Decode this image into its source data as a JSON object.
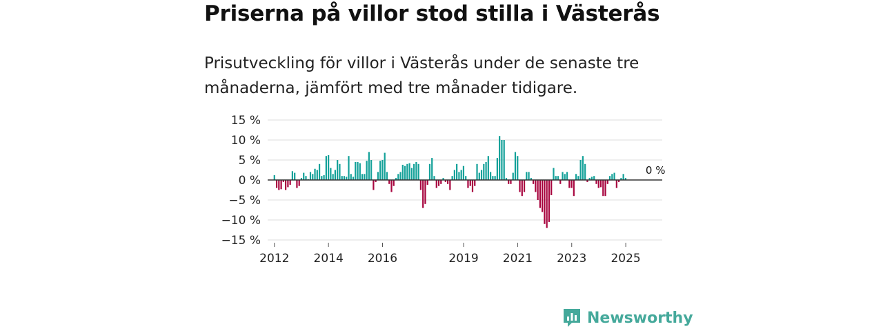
{
  "page": {
    "title": "Priserna på villor stod stilla i Västerås",
    "subtitle": "Prisutveckling för villor i Västerås under de senaste tre månaderna, jämfört med tre månader tidigare.",
    "brand": "Newsworthy"
  },
  "colors": {
    "positive": "#14a199",
    "negative": "#a8063f",
    "grid": "#dcdcdc",
    "zero_line": "#333333",
    "axis_text": "#222222",
    "brand": "#45a99b"
  },
  "chart_data": {
    "type": "bar",
    "title": "Priserna på villor stod stilla i Västerås",
    "xlabel": "",
    "ylabel": "",
    "ylim": [
      -15,
      15
    ],
    "y_ticks": [
      15,
      10,
      5,
      0,
      -5,
      -10,
      -15
    ],
    "y_tick_labels": [
      "15 %",
      "10 %",
      "5 %",
      "0 %",
      "−5 %",
      "−10 %",
      "−15 %"
    ],
    "x_range": [
      2011.75,
      2026.35
    ],
    "x_ticks": [
      2012,
      2014,
      2016,
      2019,
      2021,
      2023,
      2025
    ],
    "x_tick_labels": [
      "2012",
      "2014",
      "2016",
      "2019",
      "2021",
      "2023",
      "2025"
    ],
    "bar_step_years": 0.0833,
    "start_x": 2012.0,
    "values": [
      1.2,
      -2.0,
      -2.5,
      -2.3,
      -0.5,
      -2.5,
      -1.8,
      -1.2,
      2.2,
      1.8,
      -2.0,
      -1.5,
      0.5,
      1.8,
      1.0,
      0.2,
      2.0,
      1.5,
      2.8,
      2.5,
      4.0,
      1.0,
      1.2,
      6.0,
      6.2,
      3.0,
      1.5,
      2.5,
      5.0,
      4.0,
      1.0,
      1.0,
      0.8,
      6.0,
      1.5,
      0.8,
      4.5,
      4.5,
      4.2,
      1.5,
      1.5,
      4.8,
      7.0,
      5.0,
      -2.5,
      -0.5,
      2.0,
      4.8,
      5.0,
      6.8,
      2.0,
      -1.0,
      -3.0,
      -1.5,
      0.5,
      1.5,
      2.0,
      3.8,
      3.5,
      4.0,
      4.2,
      3.0,
      4.0,
      4.5,
      4.0,
      -2.5,
      -7.0,
      -6.0,
      -1.2,
      4.0,
      5.5,
      1.0,
      -2.0,
      -1.5,
      -1.0,
      0.5,
      -0.5,
      -1.0,
      -2.5,
      1.0,
      2.5,
      4.0,
      2.0,
      2.5,
      3.5,
      1.0,
      -2.0,
      -1.5,
      -3.0,
      -1.5,
      4.0,
      1.8,
      2.5,
      4.0,
      4.5,
      6.0,
      2.0,
      1.0,
      1.0,
      5.5,
      11.0,
      10.0,
      10.0,
      0.5,
      -1.0,
      -1.0,
      1.8,
      7.0,
      6.0,
      -3.0,
      -4.0,
      -3.0,
      2.0,
      2.0,
      0.5,
      -1.0,
      -3.0,
      -5.0,
      -7.0,
      -8.0,
      -11.0,
      -12.0,
      -10.5,
      -3.8,
      3.0,
      1.0,
      1.0,
      -1.0,
      2.0,
      1.5,
      2.0,
      -2.0,
      -2.0,
      -4.0,
      1.5,
      1.0,
      5.0,
      6.0,
      4.0,
      -0.5,
      0.5,
      0.8,
      1.0,
      -1.0,
      -2.0,
      -1.8,
      -4.0,
      -4.0,
      -1.0,
      1.0,
      1.5,
      1.8,
      -2.0,
      -0.5,
      0.5,
      1.5,
      0.5
    ],
    "annotation": {
      "label": "0 %",
      "value": 0,
      "x": 2026.1
    }
  }
}
